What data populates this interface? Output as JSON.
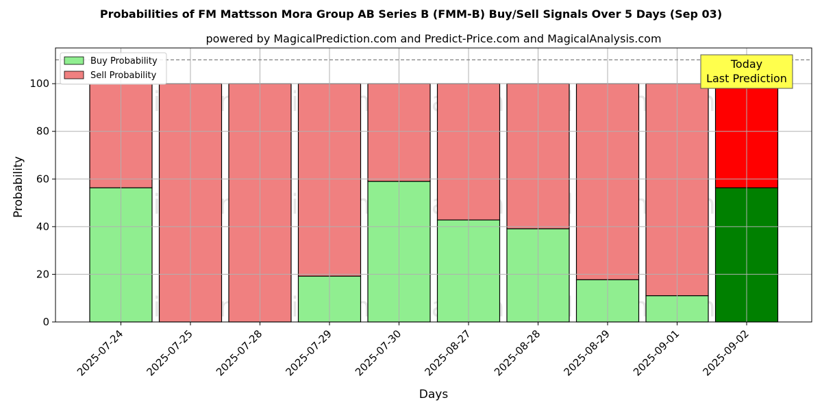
{
  "chart_data": {
    "type": "bar",
    "stacked": true,
    "title": "Probabilities of FM Mattsson Mora Group AB Series B (FMM-B) Buy/Sell Signals Over 5 Days (Sep 03)",
    "subtitle": "powered by MagicalPrediction.com and Predict-Price.com and MagicalAnalysis.com",
    "xlabel": "Days",
    "ylabel": "Probability",
    "ylim": [
      0,
      115
    ],
    "yticks": [
      0,
      20,
      40,
      60,
      80,
      100
    ],
    "grid": true,
    "legend_position": "top-left",
    "reference_line": 110,
    "categories": [
      "2025-07-24",
      "2025-07-25",
      "2025-07-28",
      "2025-07-29",
      "2025-07-30",
      "2025-08-27",
      "2025-08-28",
      "2025-08-29",
      "2025-09-01",
      "2025-09-02"
    ],
    "series": [
      {
        "name": "Buy Probability",
        "color": "#90ee90",
        "highlight_color": "#008000",
        "values": [
          56.3,
          0,
          0,
          19.2,
          59.0,
          42.8,
          39.1,
          17.7,
          11.0,
          56.3
        ]
      },
      {
        "name": "Sell Probability",
        "color": "#f08080",
        "highlight_color": "#ff0000",
        "values": [
          43.7,
          100,
          100,
          80.8,
          41.0,
          57.2,
          60.9,
          82.3,
          89.0,
          43.7
        ]
      }
    ],
    "highlight_index": 9,
    "annotation": {
      "lines": [
        "Today",
        "Last Prediction"
      ],
      "background": "#ffff4d"
    },
    "watermarks": [
      "MagicalAnalysis.com",
      "MagicalPrediction.com"
    ]
  }
}
